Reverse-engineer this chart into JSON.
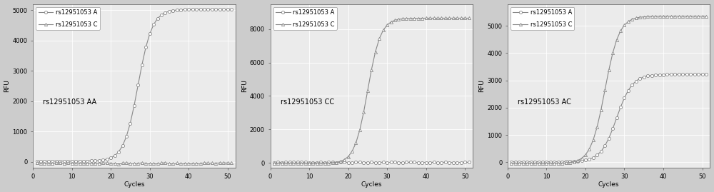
{
  "panels": [
    {
      "title": "rs12951053 AA",
      "ylim": [
        -200,
        5200
      ],
      "yticks": [
        0,
        1000,
        2000,
        3000,
        4000,
        5000
      ],
      "curve_A": {
        "amplify": true,
        "start_cycle": 27,
        "max_val": 5000,
        "k": 0.55
      },
      "curve_C": {
        "amplify": false,
        "baseline": 20
      }
    },
    {
      "title": "rs12951053 CC",
      "ylim": [
        -300,
        9500
      ],
      "yticks": [
        0,
        2000,
        4000,
        6000,
        8000
      ],
      "curve_A": {
        "amplify": false,
        "baseline": 20
      },
      "curve_C": {
        "amplify": true,
        "start_cycle": 25,
        "max_val": 8700,
        "k": 0.6
      }
    },
    {
      "title": "rs12951053 AC",
      "ylim": [
        -200,
        5800
      ],
      "yticks": [
        0,
        1000,
        2000,
        3000,
        4000,
        5000
      ],
      "curve_A": {
        "amplify": true,
        "start_cycle": 28,
        "max_val": 3200,
        "k": 0.5
      },
      "curve_C": {
        "amplify": true,
        "start_cycle": 25,
        "max_val": 5400,
        "k": 0.55
      }
    }
  ],
  "legend_labels": [
    "rs12951053 A",
    "rs12951053 C"
  ],
  "xlabel": "Cycles",
  "ylabel": "RFU",
  "xlim": [
    0,
    52
  ],
  "xticks": [
    0,
    10,
    20,
    30,
    40,
    50
  ],
  "n_cycles": 51,
  "flat_baseline": 20,
  "flat_low": -50,
  "line_color": "#888888",
  "marker_A": "o",
  "marker_C": "^",
  "markersize": 3.0,
  "linewidth": 0.8,
  "bg_color": "#ebebeb",
  "grid_color": "#ffffff",
  "fig_bg_color": "#cccccc",
  "font_size_label": 6.5,
  "font_size_tick": 6,
  "font_size_legend": 6,
  "font_size_annot": 7
}
